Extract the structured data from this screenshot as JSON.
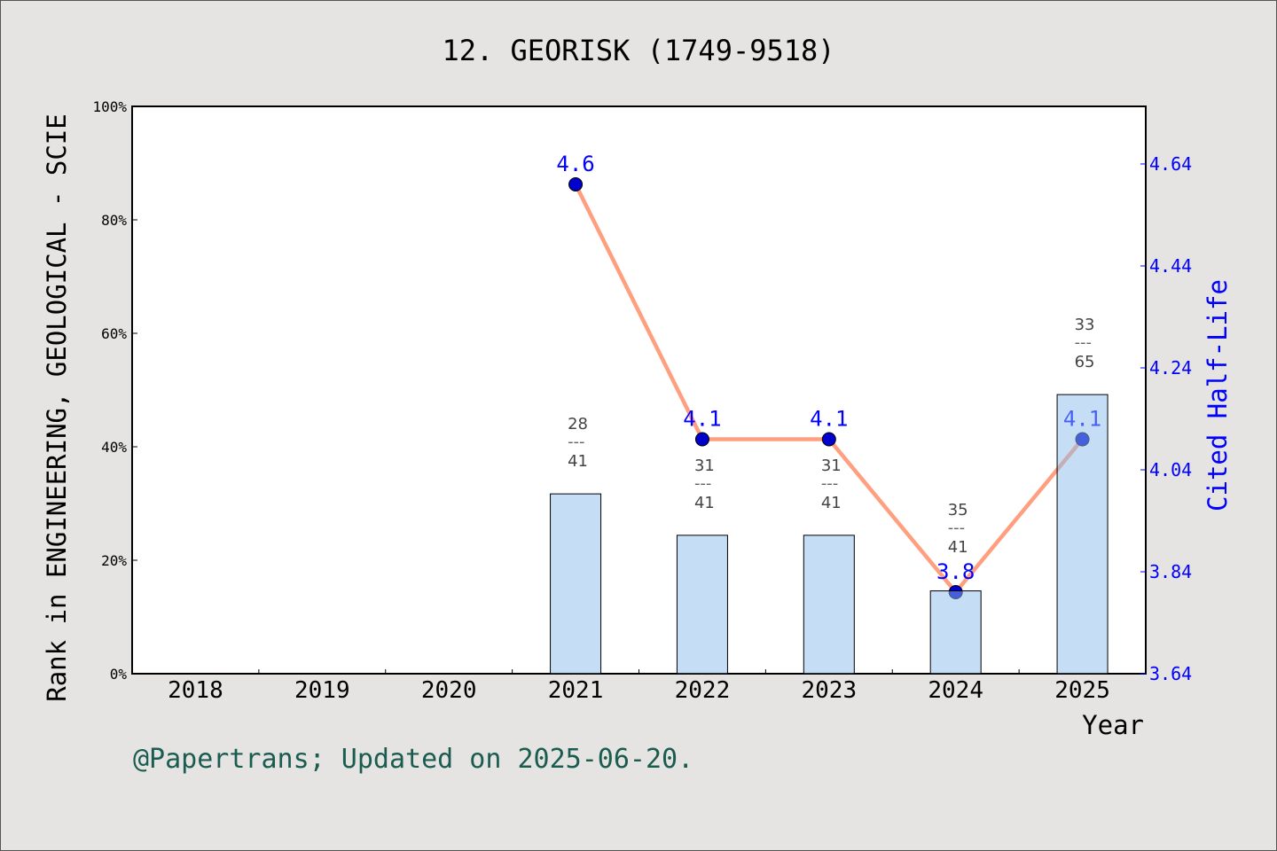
{
  "chart_data": {
    "type": "bar+line",
    "title": "12. GEORISK (1749-9518)",
    "xlabel": "Year",
    "ylabel_left": "Rank in ENGINEERING, GEOLOGICAL - SCIE",
    "ylabel_right": "Cited Half-Life",
    "categories": [
      "2018",
      "2019",
      "2020",
      "2021",
      "2022",
      "2023",
      "2024",
      "2025"
    ],
    "left_axis": {
      "ylim": [
        0,
        100
      ],
      "ticks": [
        "0%",
        "20%",
        "40%",
        "60%",
        "80%",
        "100%"
      ],
      "tick_values": [
        0,
        20,
        40,
        60,
        80,
        100
      ]
    },
    "right_axis": {
      "ylim": [
        3.64,
        4.753
      ],
      "ticks": [
        "3.64",
        "3.84",
        "4.04",
        "4.24",
        "4.44",
        "4.64"
      ],
      "tick_values": [
        3.64,
        3.84,
        4.04,
        4.24,
        4.44,
        4.64
      ],
      "color": "#0000ff"
    },
    "bars": [
      {
        "year": "2021",
        "rank": "28",
        "total": "41",
        "value": 31.7
      },
      {
        "year": "2022",
        "rank": "31",
        "total": "41",
        "value": 24.4
      },
      {
        "year": "2023",
        "rank": "31",
        "total": "41",
        "value": 24.4
      },
      {
        "year": "2024",
        "rank": "35",
        "total": "41",
        "value": 14.6
      },
      {
        "year": "2025",
        "rank": "33",
        "total": "65",
        "value": 49.2
      }
    ],
    "line": [
      {
        "year": "2021",
        "value": 4.6,
        "label": "4.6"
      },
      {
        "year": "2022",
        "value": 4.1,
        "label": "4.1"
      },
      {
        "year": "2023",
        "value": 4.1,
        "label": "4.1"
      },
      {
        "year": "2024",
        "value": 3.8,
        "label": "3.8"
      },
      {
        "year": "2025",
        "value": 4.1,
        "label": "4.1"
      }
    ],
    "colors": {
      "bar": "#c5e0f7",
      "line": "#ff9f7f",
      "marker": "#0000cc",
      "label": "#0000ff",
      "footer": "#1a5c50"
    },
    "grid": false
  },
  "footer": "@Papertrans; Updated on 2025-06-20."
}
